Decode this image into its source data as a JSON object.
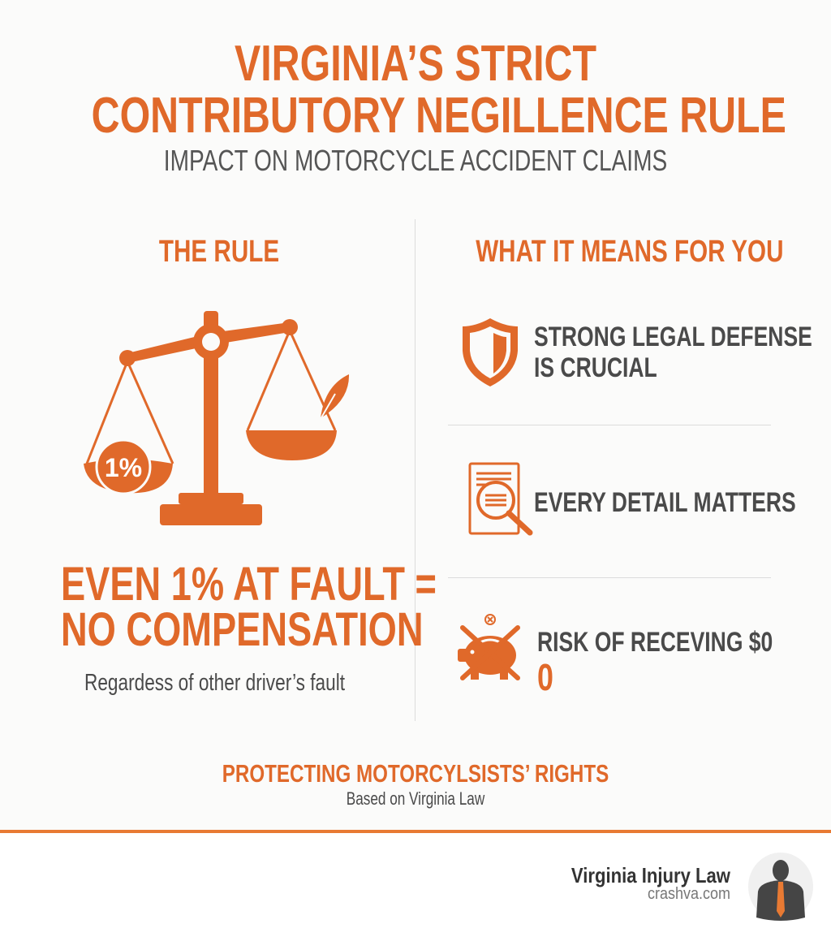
{
  "header": {
    "title_line1": "VIRGINIA’S STRICT",
    "title_line2": "CONTRIBUTORY NEGILLENCE RULE",
    "subtitle": "IMPACT ON MOTORCYCLE ACCIDENT CLAIMS"
  },
  "left": {
    "heading": "THE RULE",
    "scale_badge": "1%",
    "statement_line1": "EVEN 1% AT FAULT =",
    "statement_line2": "NO COMPENSATION",
    "note": "Regardess of other driver’s fault"
  },
  "right": {
    "heading": "WHAT IT MEANS FOR YOU",
    "items": [
      {
        "icon": "shield-icon",
        "line1": "STRONG LEGAL DEFENSE",
        "line2": "IS CRUCIAL"
      },
      {
        "icon": "document-magnifier-icon",
        "line1": "EVERY DETAIL MATTERS"
      },
      {
        "icon": "crossed-piggy-bank-icon",
        "line1": "RISK OF RECEVING $0",
        "line2": "0"
      }
    ]
  },
  "footer": {
    "heading": "PROTECTING MOTORCYLSISTS’ RIGHTS",
    "sub": "Based on Virginia Law",
    "brand": "Virginia Injury Law",
    "site": "crashva.com"
  },
  "colors": {
    "accent": "#e0692a",
    "text": "#4a4a4a",
    "background": "#fbfbfa"
  }
}
